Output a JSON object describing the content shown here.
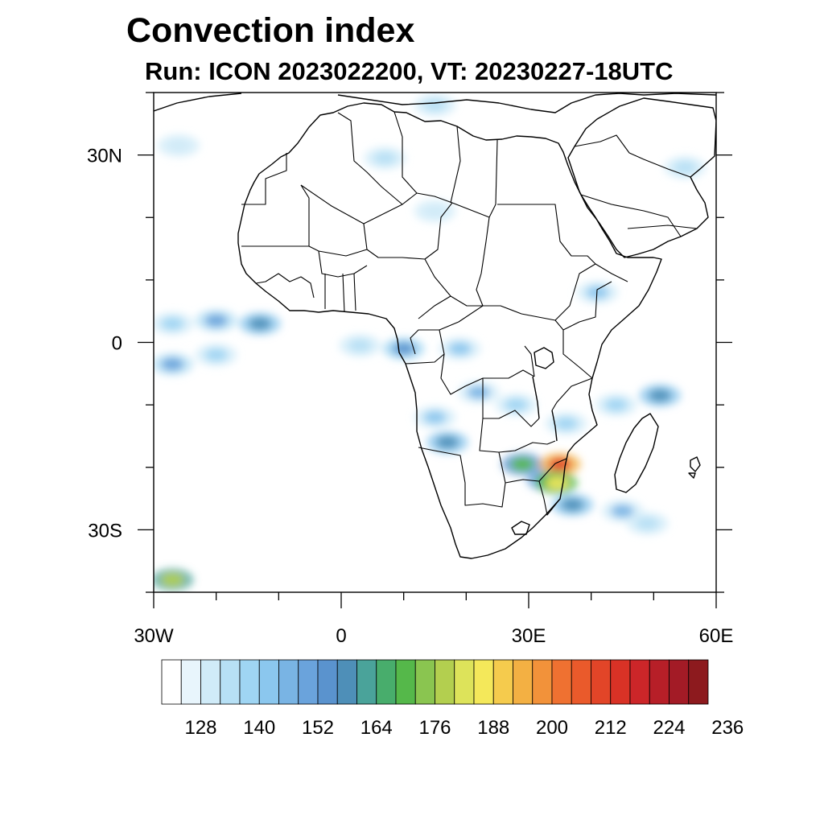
{
  "title": "Convection index",
  "subtitle": "Run: ICON 2023022200,  VT: 20230227-18UTC",
  "map": {
    "x_ticks": [
      {
        "lon": -30,
        "label": "30W"
      },
      {
        "lon": 0,
        "label": "0"
      },
      {
        "lon": 30,
        "label": "30E"
      },
      {
        "lon": 60,
        "label": "60E"
      }
    ],
    "y_ticks": [
      {
        "lat": 30,
        "label": "30N"
      },
      {
        "lat": 0,
        "label": "0"
      },
      {
        "lat": -30,
        "label": "30S"
      }
    ],
    "lon_range": [
      -30,
      60
    ],
    "lat_range": [
      -40,
      40
    ],
    "minor_tick_step_deg": 10
  },
  "colorbar": {
    "colors": [
      "#ffffff",
      "#e8f5fc",
      "#d0ebf8",
      "#b7e0f5",
      "#9fd5f3",
      "#8bc7ee",
      "#79b4e4",
      "#6aa3dc",
      "#5a93ce",
      "#4e8fb8",
      "#4aa39a",
      "#48ad6c",
      "#55b84a",
      "#8ac550",
      "#b3cf4f",
      "#dde35a",
      "#f4e85a",
      "#f5cb4d",
      "#f3b043",
      "#f2923a",
      "#ef7131",
      "#ea5a2b",
      "#e24528",
      "#d93226",
      "#cc2629",
      "#b71f28",
      "#a31b26",
      "#8d1a1e"
    ],
    "labels": [
      "128",
      "140",
      "152",
      "164",
      "176",
      "188",
      "200",
      "212",
      "224",
      "236"
    ]
  },
  "convection_patches": [
    {
      "lon": -26,
      "lat": 31.5,
      "level": 2
    },
    {
      "lon": -27,
      "lat": 3,
      "level": 4
    },
    {
      "lon": -20,
      "lat": 3.5,
      "level": 7
    },
    {
      "lon": -13,
      "lat": 3,
      "level": 9
    },
    {
      "lon": -27,
      "lat": -3.5,
      "level": 7
    },
    {
      "lon": -20,
      "lat": -2,
      "level": 4
    },
    {
      "lon": 3,
      "lat": -0.5,
      "level": 3
    },
    {
      "lon": 10,
      "lat": -1,
      "level": 8
    },
    {
      "lon": 19,
      "lat": -1,
      "level": 5
    },
    {
      "lon": 22,
      "lat": -8,
      "level": 6
    },
    {
      "lon": 15,
      "lat": -12,
      "level": 5
    },
    {
      "lon": 17,
      "lat": -16,
      "level": 9
    },
    {
      "lon": 28,
      "lat": -10,
      "level": 4
    },
    {
      "lon": 36,
      "lat": -13,
      "level": 4
    },
    {
      "lon": 44,
      "lat": -10,
      "level": 4
    },
    {
      "lon": 51,
      "lat": -8.5,
      "level": 9
    },
    {
      "lon": 29,
      "lat": -19.5,
      "level": 12
    },
    {
      "lon": 33,
      "lat": -22,
      "level": 11
    },
    {
      "lon": 35,
      "lat": -19.5,
      "level": 22
    },
    {
      "lon": 34.5,
      "lat": -22.5,
      "level": 16
    },
    {
      "lon": 37,
      "lat": -26,
      "level": 9
    },
    {
      "lon": 45,
      "lat": -27,
      "level": 6
    },
    {
      "lon": 49,
      "lat": -29,
      "level": 3
    },
    {
      "lon": 41,
      "lat": 8,
      "level": 5
    },
    {
      "lon": 7,
      "lat": 29.5,
      "level": 3
    },
    {
      "lon": 15,
      "lat": 21,
      "level": 2
    },
    {
      "lon": 55,
      "lat": 28,
      "level": 3
    },
    {
      "lon": 15,
      "lat": 38,
      "level": 3
    },
    {
      "lon": -27,
      "lat": -38,
      "level": 14
    }
  ]
}
